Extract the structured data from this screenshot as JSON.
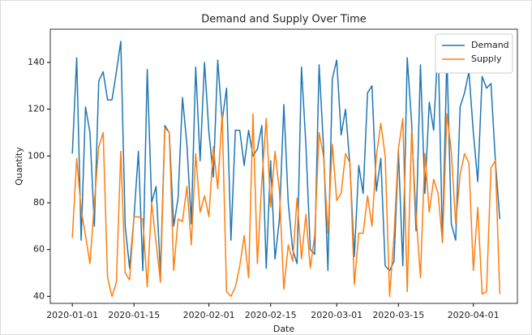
{
  "chart_data": {
    "type": "line",
    "title": "Demand and Supply Over Time",
    "x_label": "Date",
    "y_label": "Quantity",
    "x": [
      "2020-01-01",
      "2020-01-02",
      "2020-01-03",
      "2020-01-04",
      "2020-01-05",
      "2020-01-06",
      "2020-01-07",
      "2020-01-08",
      "2020-01-09",
      "2020-01-10",
      "2020-01-11",
      "2020-01-12",
      "2020-01-13",
      "2020-01-14",
      "2020-01-15",
      "2020-01-16",
      "2020-01-17",
      "2020-01-18",
      "2020-01-19",
      "2020-01-20",
      "2020-01-21",
      "2020-01-22",
      "2020-01-23",
      "2020-01-24",
      "2020-01-25",
      "2020-01-26",
      "2020-01-27",
      "2020-01-28",
      "2020-01-29",
      "2020-01-30",
      "2020-01-31",
      "2020-02-01",
      "2020-02-02",
      "2020-02-03",
      "2020-02-04",
      "2020-02-05",
      "2020-02-06",
      "2020-02-07",
      "2020-02-08",
      "2020-02-09",
      "2020-02-10",
      "2020-02-11",
      "2020-02-12",
      "2020-02-13",
      "2020-02-14",
      "2020-02-15",
      "2020-02-16",
      "2020-02-17",
      "2020-02-18",
      "2020-02-19",
      "2020-02-20",
      "2020-02-21",
      "2020-02-22",
      "2020-02-23",
      "2020-02-24",
      "2020-02-25",
      "2020-02-26",
      "2020-02-27",
      "2020-02-28",
      "2020-02-29",
      "2020-03-01",
      "2020-03-02",
      "2020-03-03",
      "2020-03-04",
      "2020-03-05",
      "2020-03-06",
      "2020-03-07",
      "2020-03-08",
      "2020-03-09",
      "2020-03-10",
      "2020-03-11",
      "2020-03-12",
      "2020-03-13",
      "2020-03-14",
      "2020-03-15",
      "2020-03-16",
      "2020-03-17",
      "2020-03-18",
      "2020-03-19",
      "2020-03-20",
      "2020-03-21",
      "2020-03-22",
      "2020-03-23",
      "2020-03-24",
      "2020-03-25",
      "2020-03-26",
      "2020-03-27",
      "2020-03-28",
      "2020-03-29",
      "2020-03-30",
      "2020-03-31",
      "2020-04-01",
      "2020-04-02",
      "2020-04-03",
      "2020-04-04",
      "2020-04-05",
      "2020-04-06",
      "2020-04-07"
    ],
    "series": [
      {
        "name": "Demand",
        "color": "#1f77b4",
        "values": [
          101,
          142,
          64,
          121,
          110,
          70,
          132,
          136,
          124,
          124,
          136,
          149,
          70,
          52,
          74,
          102,
          51,
          137,
          80,
          87,
          50,
          113,
          110,
          70,
          82,
          125,
          105,
          71,
          138,
          98,
          140,
          110,
          91,
          141,
          115,
          129,
          64,
          111,
          111,
          96,
          111,
          100,
          103,
          113,
          52,
          98,
          56,
          73,
          122,
          80,
          60,
          54,
          138,
          105,
          60,
          58,
          139,
          104,
          51,
          133,
          141,
          109,
          120,
          96,
          57,
          96,
          84,
          127,
          130,
          85,
          99,
          53,
          51,
          55,
          102,
          53,
          142,
          114,
          68,
          139,
          84,
          123,
          111,
          149,
          63,
          143,
          71,
          64,
          121,
          127,
          136,
          110,
          89,
          134,
          129,
          131,
          98,
          73
        ]
      },
      {
        "name": "Supply",
        "color": "#ff7f0e",
        "values": [
          65,
          99,
          77,
          66,
          54,
          80,
          104,
          110,
          48,
          40,
          46,
          102,
          50,
          47,
          74,
          74,
          73,
          44,
          80,
          63,
          46,
          112,
          110,
          51,
          73,
          72,
          87,
          62,
          101,
          76,
          83,
          74,
          104,
          86,
          118,
          42,
          40,
          44,
          53,
          66,
          48,
          118,
          54,
          89,
          116,
          78,
          102,
          85,
          43,
          62,
          55,
          82,
          56,
          75,
          52,
          66,
          110,
          100,
          67,
          105,
          81,
          84,
          101,
          97,
          45,
          67,
          67,
          83,
          70,
          100,
          114,
          100,
          40,
          66,
          103,
          116,
          42,
          111,
          75,
          48,
          101,
          76,
          90,
          84,
          63,
          118,
          102,
          71,
          92,
          101,
          97,
          51,
          78,
          41,
          42,
          95,
          98,
          41
        ]
      }
    ],
    "xlim": [
      "2019-12-27",
      "2020-04-11"
    ],
    "xticks": [
      "2020-01-01",
      "2020-01-15",
      "2020-02-01",
      "2020-02-15",
      "2020-03-01",
      "2020-03-15",
      "2020-04-01"
    ],
    "ylim": [
      37,
      154.2
    ],
    "yticks": [
      40,
      60,
      80,
      100,
      120,
      140
    ],
    "grid": false,
    "legend": "upper right"
  }
}
